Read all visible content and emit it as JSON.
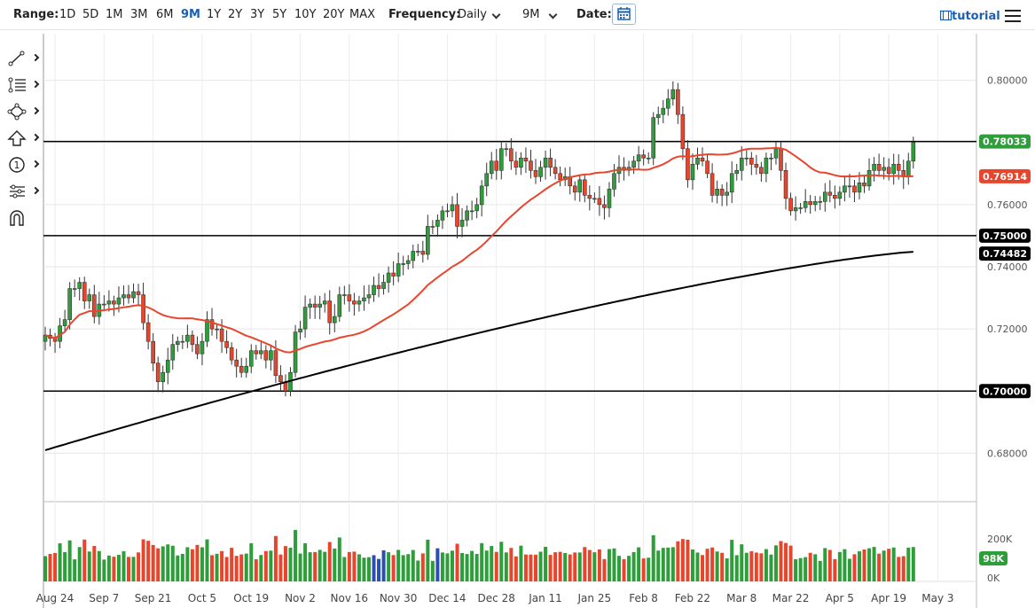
{
  "toolbar": {
    "range_label": "Range:",
    "ranges": [
      "1D",
      "5D",
      "1M",
      "3M",
      "6M",
      "9M",
      "1Y",
      "2Y",
      "3Y",
      "5Y",
      "10Y",
      "20Y",
      "MAX"
    ],
    "active_range": "9M",
    "frequency_label": "Frequency:",
    "frequency_value": "Daily",
    "period_value": "9M",
    "date_label": "Date:",
    "tutorial_label": "tutorial",
    "accent": "#1a5fb4"
  },
  "sidebar": {
    "tools": [
      "trendline-icon",
      "fibonacci-icon",
      "shapes-icon",
      "arrow-up-icon",
      "annotation-number-icon",
      "measure-icon",
      "magnet-icon"
    ],
    "annotation_number": "1"
  },
  "chart_data": {
    "type": "candlestick",
    "ylim": [
      0.665,
      0.815
    ],
    "yticks": [
      0.68,
      0.7,
      0.72,
      0.74,
      0.76,
      0.78,
      0.8
    ],
    "ytick_labels": [
      "0.68000",
      "0.70000",
      "0.72000",
      "0.74000",
      "0.76000",
      "0.78000",
      "0.80000"
    ],
    "xtick_labels": [
      "Aug 24",
      "Sep 7",
      "Sep 21",
      "Oct 5",
      "Oct 19",
      "Nov 2",
      "Nov 16",
      "Nov 30",
      "Dec 14",
      "Dec 28",
      "Jan 11",
      "Jan 25",
      "Feb 8",
      "Feb 22",
      "Mar 8",
      "Mar 22",
      "Apr 5",
      "Apr 19",
      "May 3"
    ],
    "candle_closes": [
      0.718,
      0.717,
      0.716,
      0.721,
      0.723,
      0.733,
      0.733,
      0.735,
      0.729,
      0.731,
      0.724,
      0.728,
      0.728,
      0.729,
      0.728,
      0.73,
      0.731,
      0.73,
      0.732,
      0.731,
      0.722,
      0.716,
      0.709,
      0.703,
      0.706,
      0.71,
      0.715,
      0.716,
      0.716,
      0.718,
      0.715,
      0.712,
      0.716,
      0.723,
      0.72,
      0.72,
      0.716,
      0.714,
      0.71,
      0.708,
      0.706,
      0.708,
      0.713,
      0.712,
      0.713,
      0.71,
      0.713,
      0.705,
      0.703,
      0.7,
      0.706,
      0.719,
      0.72,
      0.727,
      0.728,
      0.727,
      0.728,
      0.729,
      0.722,
      0.724,
      0.731,
      0.731,
      0.729,
      0.728,
      0.729,
      0.73,
      0.731,
      0.734,
      0.733,
      0.735,
      0.738,
      0.737,
      0.741,
      0.741,
      0.742,
      0.745,
      0.745,
      0.744,
      0.753,
      0.753,
      0.755,
      0.758,
      0.758,
      0.76,
      0.753,
      0.755,
      0.758,
      0.758,
      0.76,
      0.766,
      0.77,
      0.774,
      0.771,
      0.778,
      0.778,
      0.774,
      0.772,
      0.775,
      0.774,
      0.771,
      0.769,
      0.772,
      0.775,
      0.772,
      0.77,
      0.768,
      0.769,
      0.766,
      0.764,
      0.768,
      0.763,
      0.762,
      0.762,
      0.76,
      0.759,
      0.765,
      0.77,
      0.772,
      0.771,
      0.772,
      0.774,
      0.776,
      0.775,
      0.775,
      0.788,
      0.789,
      0.791,
      0.794,
      0.797,
      0.789,
      0.778,
      0.768,
      0.773,
      0.775,
      0.774,
      0.77,
      0.763,
      0.765,
      0.763,
      0.764,
      0.77,
      0.771,
      0.775,
      0.775,
      0.773,
      0.772,
      0.77,
      0.775,
      0.775,
      0.778,
      0.771,
      0.762,
      0.758,
      0.759,
      0.759,
      0.761,
      0.76,
      0.761,
      0.761,
      0.764,
      0.763,
      0.762,
      0.764,
      0.766,
      0.766,
      0.764,
      0.767,
      0.766,
      0.771,
      0.773,
      0.771,
      0.772,
      0.77,
      0.773,
      0.771,
      0.769,
      0.774,
      0.78
    ],
    "ema_50_end": 0.76914,
    "sma_200_end": 0.74482,
    "last_close": 0.78033,
    "horizontal_lines": [
      0.78033,
      0.75,
      0.7
    ],
    "price_labels": [
      {
        "value": 0.78033,
        "text": "0.78033",
        "color": "#2e9e3a"
      },
      {
        "value": 0.76914,
        "text": "0.76914",
        "color": "#e8462c"
      },
      {
        "value": 0.75,
        "text": "0.75000",
        "color": "#000000"
      },
      {
        "value": 0.74482,
        "text": "0.74482",
        "color": "#000000"
      },
      {
        "value": 0.7,
        "text": "0.70000",
        "color": "#000000"
      }
    ],
    "volume": {
      "yticks": [
        "200K",
        "0K"
      ],
      "last_label": "98K",
      "last_color": "#2e9e3a"
    },
    "colors": {
      "up": "#2e9e3a",
      "down": "#e8462c",
      "ema": "#e8462c",
      "sma": "#000000",
      "volume_neutral": "#2b4fb0"
    },
    "grid": true
  }
}
